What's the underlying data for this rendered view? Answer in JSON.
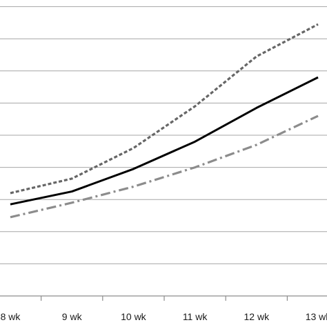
{
  "chart_data": {
    "type": "line",
    "categories": [
      "8 wk",
      "9 wk",
      "10 wk",
      "11 wk",
      "12 wk",
      "13 wk"
    ],
    "series": [
      {
        "style": "dotted",
        "color": "#666666",
        "values": [
          6.4,
          7.3,
          9.2,
          11.8,
          14.9,
          16.9
        ]
      },
      {
        "style": "solid",
        "color": "#000000",
        "values": [
          5.7,
          6.5,
          7.9,
          9.6,
          11.7,
          13.6
        ]
      },
      {
        "style": "dash-dot",
        "color": "#8c8c8c",
        "values": [
          4.9,
          5.8,
          6.8,
          8.0,
          9.4,
          11.2
        ]
      }
    ],
    "y_gridlines": [
      1,
      2,
      3,
      4,
      5,
      6,
      7,
      8,
      9
    ],
    "ylim": [
      0,
      18
    ],
    "grid": true,
    "legend": "none"
  }
}
